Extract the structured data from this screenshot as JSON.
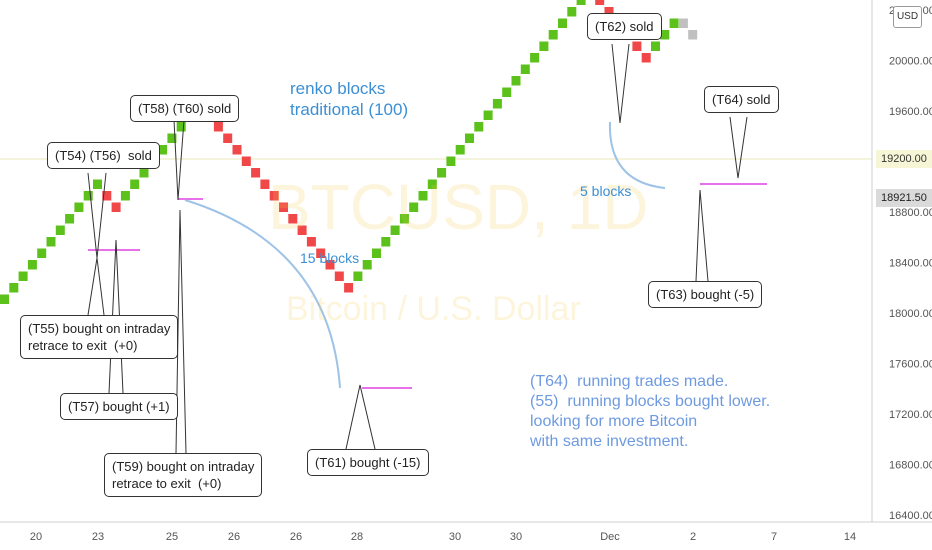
{
  "chart_data": {
    "type": "renko",
    "symbol_watermark": "BTCUSD, 1D",
    "name_watermark": "Bitcoin / U.S. Dollar",
    "currency": "USD",
    "y_ticks": [
      "20400.00",
      "20000.00",
      "19600.00",
      "19200.00",
      "18800.00",
      "18400.00",
      "18000.00",
      "17600.00",
      "17200.00",
      "16800.00",
      "16400.00"
    ],
    "x_ticks": [
      "20",
      "23",
      "25",
      "26",
      "26",
      "28",
      "30",
      "30",
      "Dec",
      "2",
      "7",
      "14"
    ],
    "price_labels": {
      "last": "18921.50",
      "level": "19200.00"
    },
    "colors": {
      "up": "#5cc21b",
      "down": "#f04848",
      "ghost": "#c0c0c0",
      "exit_line": "#e040e0",
      "curve": "#9ec3e6",
      "note_blue": "#3b8fd4",
      "note_cornflower": "#6e9ae0"
    },
    "bricks": [
      "u",
      "u",
      "u",
      "u",
      "u",
      "u",
      "u",
      "u",
      "u",
      "u",
      "u",
      "d",
      "d",
      "u",
      "u",
      "u",
      "u",
      "u",
      "u",
      "u",
      "u",
      "u",
      "d",
      "d",
      "d",
      "d",
      "d",
      "d",
      "d",
      "d",
      "d",
      "d",
      "d",
      "d",
      "d",
      "d",
      "d",
      "d",
      "u",
      "u",
      "u",
      "u",
      "u",
      "u",
      "u",
      "u",
      "u",
      "u",
      "u",
      "u",
      "u",
      "u",
      "u",
      "u",
      "u",
      "u",
      "u",
      "u",
      "u",
      "u",
      "u",
      "u",
      "u",
      "u",
      "d",
      "d",
      "d",
      "d",
      "d",
      "d",
      "u",
      "u",
      "u",
      "g",
      "g"
    ],
    "callouts": [
      {
        "text": "(T54) (T56)  sold"
      },
      {
        "text": "(T55) bought on intraday\nretrace to exit  (+0)"
      },
      {
        "text": "(T57) bought (+1)"
      },
      {
        "text": "(T58) (T60) sold"
      },
      {
        "text": "(T59) bought on intraday\nretrace to exit  (+0)"
      },
      {
        "text": "(T61) bought (-15)"
      },
      {
        "text": "(T62) sold"
      },
      {
        "text": "(T63) bought (-5)"
      },
      {
        "text": "(T64) sold"
      }
    ],
    "notes": {
      "renko": "renko blocks\ntraditional (100)",
      "blocks15": "15 blocks",
      "blocks5": "5 blocks",
      "summary": "(T64)  running trades made.\n(55)  running blocks bought lower.\nlooking for more Bitcoin\nwith same investment."
    }
  }
}
